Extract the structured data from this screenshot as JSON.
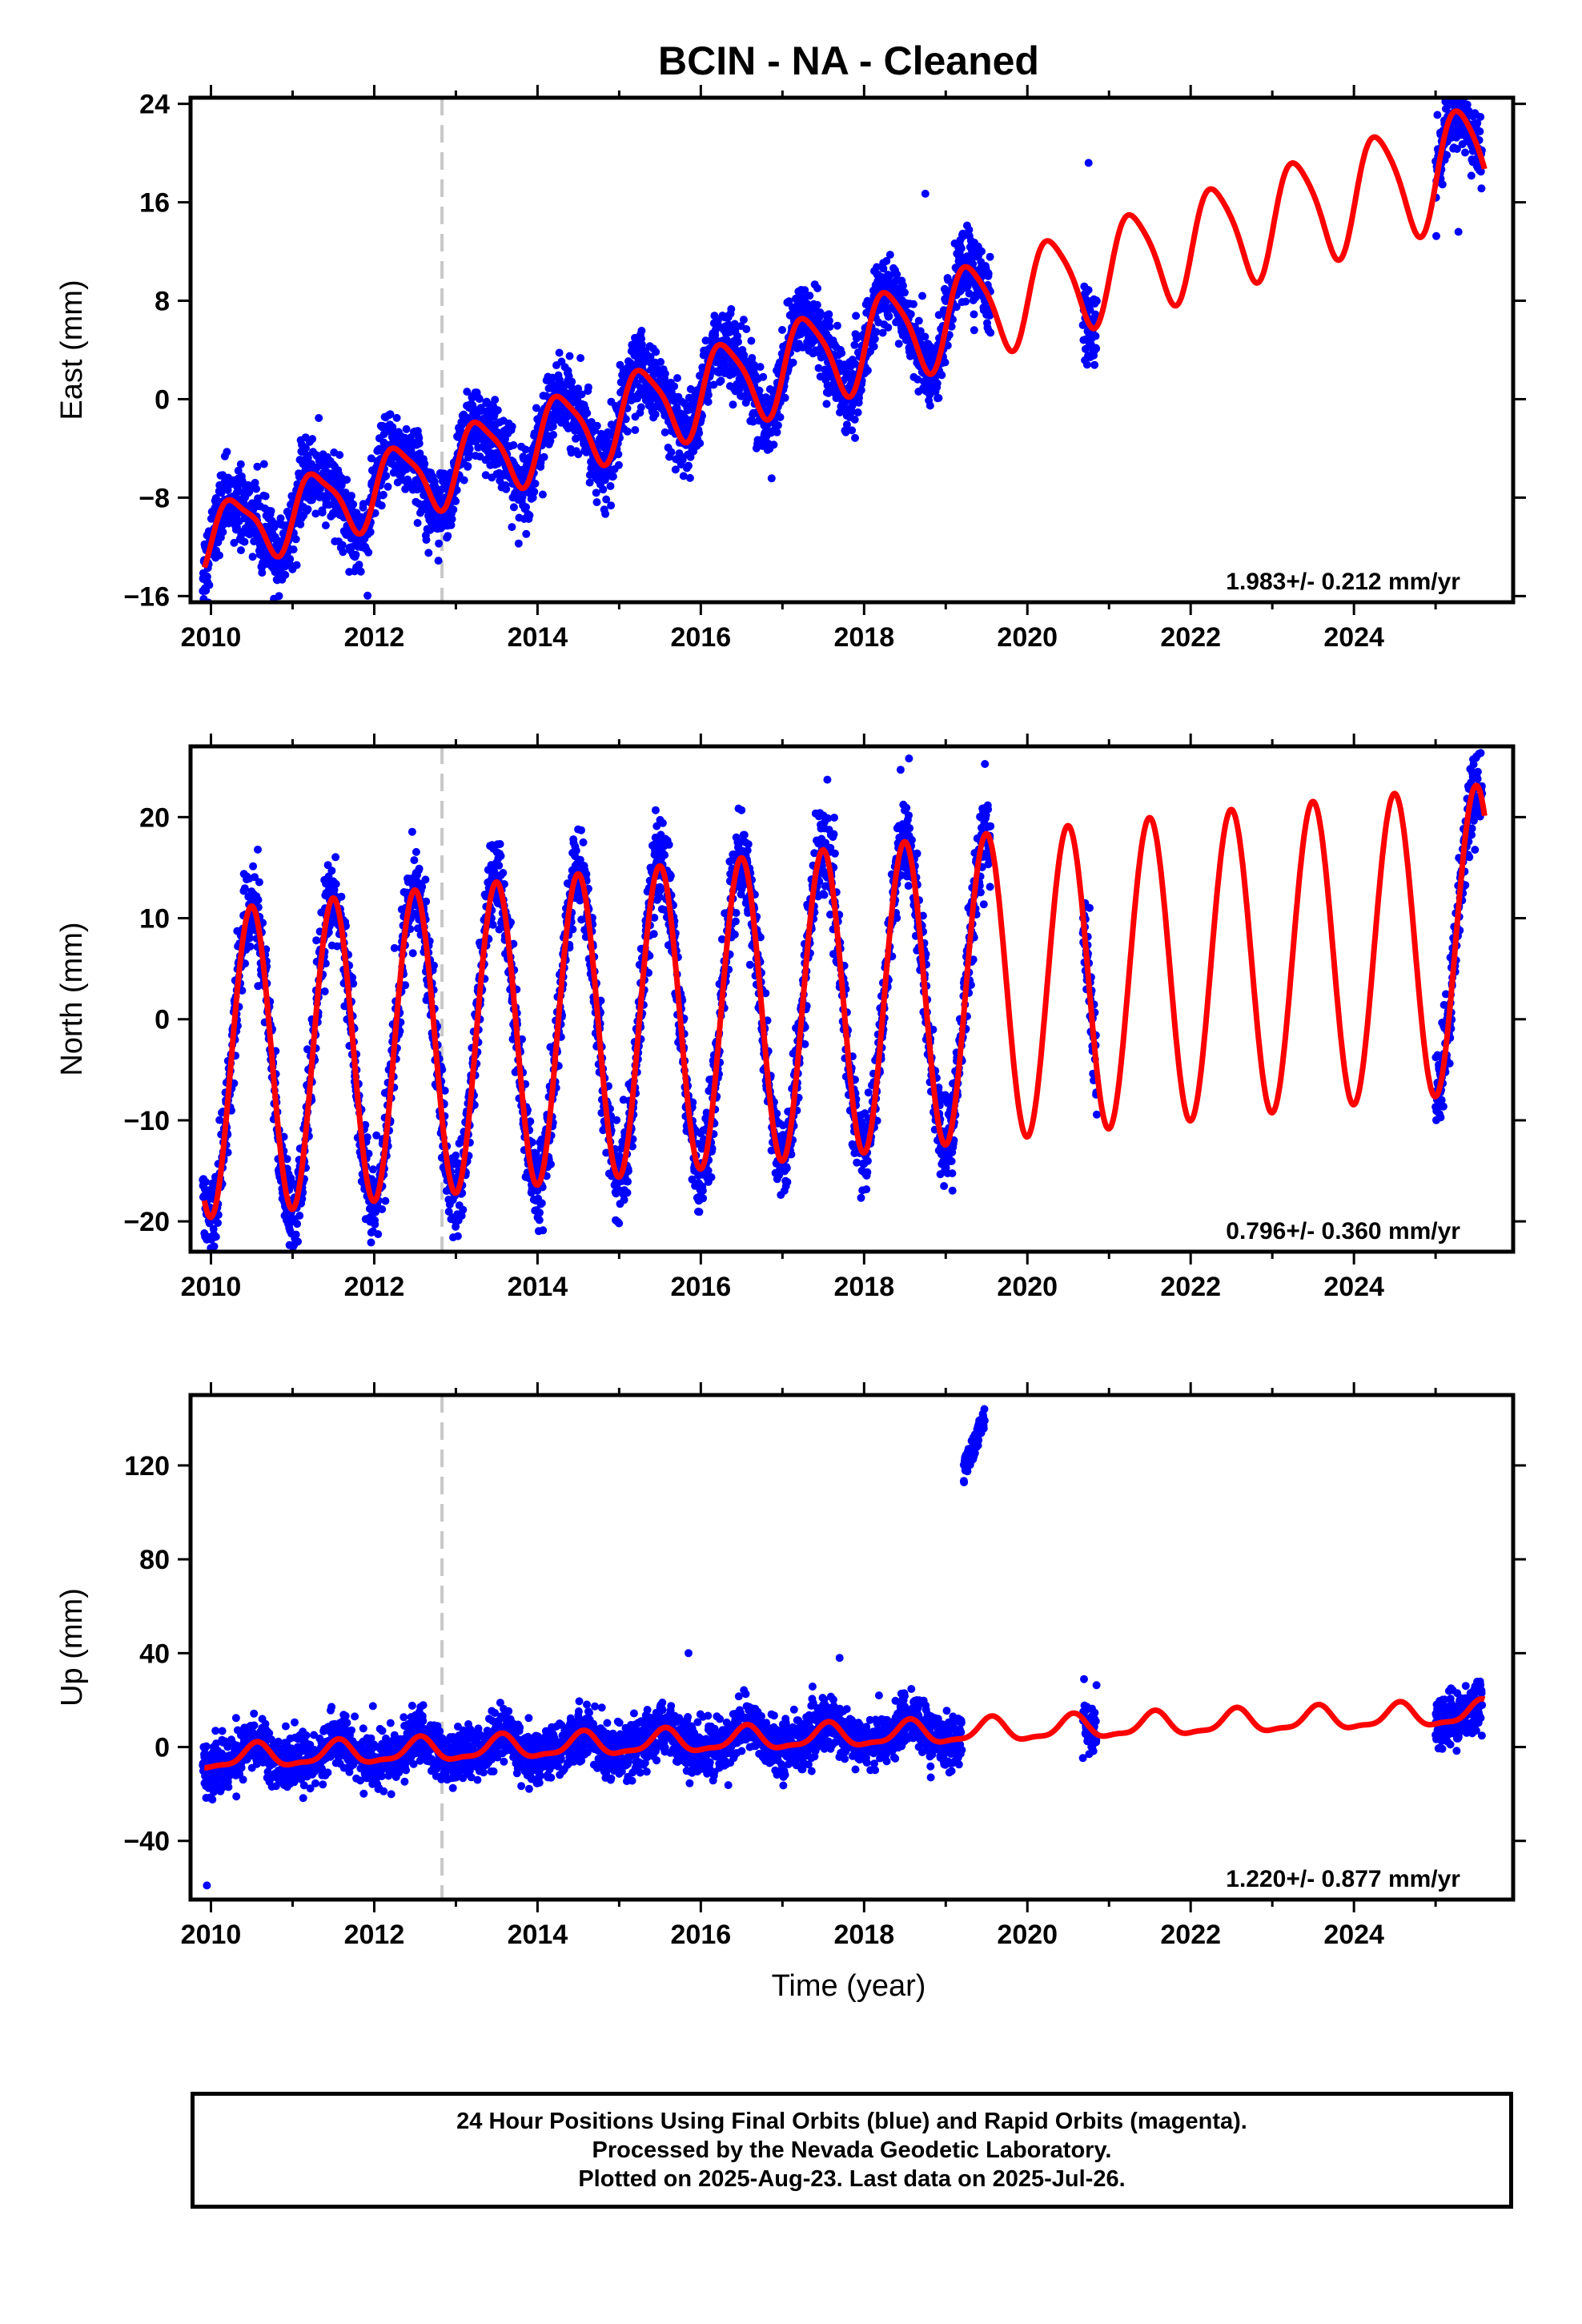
{
  "title": "BCIN  - NA - Cleaned",
  "xlabel": "Time (year)",
  "colors": {
    "final": "#0000ff",
    "model": "#ff0000",
    "event": "#c8c8c8",
    "frame": "#000000"
  },
  "caption": [
    "24 Hour Positions Using Final Orbits (blue) and Rapid Orbits (magenta).",
    "Processed by the Nevada Geodetic Laboratory.",
    "Plotted on 2025-Aug-23. Last data on 2025-Jul-26."
  ],
  "chart_data": [
    {
      "type": "scatter",
      "component": "east",
      "ylabel": "East (mm)",
      "rate_text": "1.983+/- 0.212 mm/yr",
      "xlim": [
        2009.75,
        2025.95
      ],
      "ylim": [
        -16.5,
        24.5
      ],
      "xticks": [
        2010,
        2012,
        2014,
        2016,
        2018,
        2020,
        2022,
        2024
      ],
      "yticks": [
        -16,
        -8,
        0,
        8,
        16,
        24
      ],
      "event_year": 2012.83,
      "data_segments": [
        [
          2009.9,
          2019.55
        ],
        [
          2020.68,
          2020.85
        ],
        [
          2025.0,
          2025.57
        ]
      ],
      "model": {
        "t0": 2010.0,
        "offset": -11.2,
        "rate": 1.983,
        "ann_amp": 2.6,
        "ann_phase": -0.25,
        "semi_amp": 0.7,
        "semi_phase": 0.1,
        "amp_growth": 0.05
      },
      "scatter_sd": 1.5,
      "highlight_points": [
        [
          2020.75,
          19.2
        ],
        [
          2025.28,
          13.6
        ],
        [
          2018.75,
          16.7
        ]
      ]
    },
    {
      "type": "scatter",
      "component": "north",
      "ylabel": "North (mm)",
      "rate_text": "0.796+/- 0.360 mm/yr",
      "xlim": [
        2009.75,
        2025.95
      ],
      "ylim": [
        -23,
        27
      ],
      "xticks": [
        2010,
        2012,
        2014,
        2016,
        2018,
        2020,
        2022,
        2024
      ],
      "yticks": [
        -20,
        -10,
        0,
        10,
        20
      ],
      "event_year": 2012.83,
      "data_segments": [
        [
          2009.9,
          2019.55
        ],
        [
          2020.68,
          2020.85
        ],
        [
          2025.0,
          2025.57
        ]
      ],
      "model": {
        "t0": 2010.0,
        "offset": -4.4,
        "rate": 0.796,
        "ann_amp": 15.2,
        "ann_phase": -1.55,
        "semi_amp": 0.0,
        "semi_phase": 0.0,
        "amp_growth": 0.0
      },
      "scatter_sd": 2.2,
      "highlight_points": [
        [
          2018.55,
          25.8
        ],
        [
          2017.55,
          23.7
        ],
        [
          2025.5,
          26.0
        ]
      ]
    },
    {
      "type": "scatter",
      "component": "up",
      "ylabel": "Up (mm)",
      "rate_text": "1.220+/- 0.877 mm/yr",
      "xlim": [
        2009.75,
        2025.95
      ],
      "ylim": [
        -65,
        150
      ],
      "xticks": [
        2010,
        2012,
        2014,
        2016,
        2018,
        2020,
        2022,
        2024
      ],
      "yticks": [
        -40,
        0,
        40,
        80,
        120
      ],
      "event_year": 2012.83,
      "data_segments": [
        [
          2009.9,
          2019.2
        ],
        [
          2020.68,
          2020.85
        ],
        [
          2025.0,
          2025.57
        ]
      ],
      "model": {
        "t0": 2010.0,
        "offset": -4.8,
        "rate": 1.22,
        "ann_amp": 4.8,
        "ann_phase": -1.9,
        "semi_amp": 1.6,
        "semi_phase": 0.6,
        "amp_growth": 0.0
      },
      "scatter_sd": 5.5,
      "outlier_cluster": {
        "x": [
          2019.22,
          2019.48
        ],
        "y": [
          112,
          146
        ]
      },
      "highlight_points": [
        [
          2009.95,
          -59
        ],
        [
          2015.85,
          40
        ],
        [
          2017.7,
          38
        ]
      ]
    }
  ]
}
